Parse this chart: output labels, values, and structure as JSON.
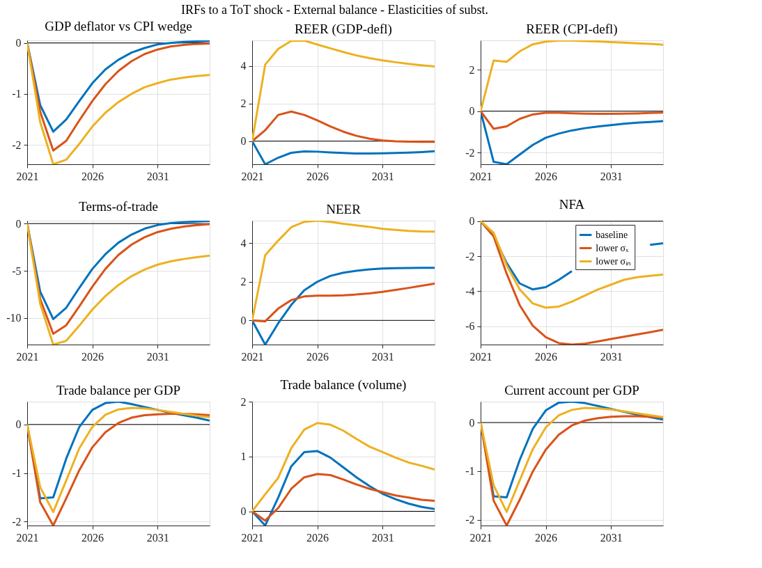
{
  "chart_data": [
    {
      "type": "line",
      "title": "GDP deflator vs CPI wedge",
      "annotations": [
        "IRFs to a ToT shock - External balance - Elasticities of subst."
      ],
      "x": [
        2021,
        2022,
        2023,
        2024,
        2025,
        2026,
        2027,
        2028,
        2029,
        2030,
        2031,
        2032,
        2033,
        2034,
        2035
      ],
      "xlim": [
        2021,
        2035
      ],
      "xticks": [
        2021,
        2026,
        2031
      ],
      "ylim": [
        -2.38,
        0.05
      ],
      "yticks": [
        -2,
        -1,
        0
      ],
      "grid": true,
      "ref_lines": [
        {
          "axis": "y",
          "value": 0,
          "color": "#000000"
        }
      ],
      "series": [
        {
          "color": "#0072bd",
          "values": [
            0,
            -1.22,
            -1.74,
            -1.5,
            -1.14,
            -0.79,
            -0.52,
            -0.33,
            -0.19,
            -0.1,
            -0.03,
            0,
            0.02,
            0.03,
            0.04
          ]
        },
        {
          "color": "#d95319",
          "values": [
            0,
            -1.35,
            -2.11,
            -1.92,
            -1.52,
            -1.14,
            -0.81,
            -0.55,
            -0.36,
            -0.22,
            -0.13,
            -0.07,
            -0.04,
            -0.02,
            -0.01
          ]
        },
        {
          "color": "#edb120",
          "values": [
            0,
            -1.55,
            -2.38,
            -2.29,
            -1.98,
            -1.64,
            -1.37,
            -1.16,
            -1.0,
            -0.87,
            -0.79,
            -0.72,
            -0.68,
            -0.65,
            -0.63
          ]
        }
      ]
    },
    {
      "type": "line",
      "title": "REER (GDP-defl)",
      "x": [
        2021,
        2022,
        2023,
        2024,
        2025,
        2026,
        2027,
        2028,
        2029,
        2030,
        2031,
        2032,
        2033,
        2034,
        2035
      ],
      "xlim": [
        2021,
        2035
      ],
      "xticks": [
        2021,
        2026,
        2031
      ],
      "ylim": [
        -1.23,
        5.35
      ],
      "yticks": [
        0,
        2,
        4
      ],
      "grid": true,
      "ref_lines": [
        {
          "axis": "y",
          "value": 0,
          "color": "#000000"
        }
      ],
      "series": [
        {
          "color": "#0072bd",
          "values": [
            0,
            -1.23,
            -0.88,
            -0.62,
            -0.55,
            -0.56,
            -0.6,
            -0.63,
            -0.66,
            -0.66,
            -0.65,
            -0.63,
            -0.61,
            -0.58,
            -0.54
          ]
        },
        {
          "color": "#d95319",
          "values": [
            0,
            0.58,
            1.39,
            1.57,
            1.39,
            1.1,
            0.78,
            0.5,
            0.28,
            0.13,
            0.04,
            -0.01,
            -0.03,
            -0.04,
            -0.04
          ]
        },
        {
          "color": "#edb120",
          "values": [
            0,
            4.06,
            4.9,
            5.32,
            5.34,
            5.13,
            4.93,
            4.73,
            4.55,
            4.41,
            4.29,
            4.19,
            4.1,
            4.03,
            3.96
          ]
        }
      ]
    },
    {
      "type": "line",
      "title": "REER (CPI-defl)",
      "x": [
        2021,
        2022,
        2023,
        2024,
        2025,
        2026,
        2027,
        2028,
        2029,
        2030,
        2031,
        2032,
        2033,
        2034,
        2035
      ],
      "xlim": [
        2021,
        2035
      ],
      "xticks": [
        2021,
        2026,
        2031
      ],
      "ylim": [
        -2.56,
        3.41
      ],
      "yticks": [
        -2,
        0,
        2
      ],
      "grid": true,
      "ref_lines": [
        {
          "axis": "y",
          "value": 0,
          "color": "#000000"
        }
      ],
      "series": [
        {
          "color": "#0072bd",
          "values": [
            0,
            -2.44,
            -2.56,
            -2.09,
            -1.63,
            -1.28,
            -1.08,
            -0.93,
            -0.82,
            -0.74,
            -0.67,
            -0.61,
            -0.56,
            -0.52,
            -0.48
          ]
        },
        {
          "color": "#d95319",
          "values": [
            0,
            -0.85,
            -0.73,
            -0.37,
            -0.16,
            -0.08,
            -0.08,
            -0.1,
            -0.12,
            -0.13,
            -0.13,
            -0.12,
            -0.11,
            -0.09,
            -0.07
          ]
        },
        {
          "color": "#edb120",
          "values": [
            0,
            2.44,
            2.38,
            2.88,
            3.22,
            3.35,
            3.4,
            3.4,
            3.38,
            3.36,
            3.33,
            3.3,
            3.27,
            3.24,
            3.2
          ]
        }
      ]
    },
    {
      "type": "line",
      "title": "Terms-of-trade",
      "x": [
        2021,
        2022,
        2023,
        2024,
        2025,
        2026,
        2027,
        2028,
        2029,
        2030,
        2031,
        2032,
        2033,
        2034,
        2035
      ],
      "xlim": [
        2021,
        2035
      ],
      "xticks": [
        2021,
        2026,
        2031
      ],
      "ylim": [
        -12.8,
        0.31
      ],
      "yticks": [
        -10,
        -5,
        0
      ],
      "grid": true,
      "ref_lines": [
        {
          "axis": "y",
          "value": 0,
          "color": "#000000"
        }
      ],
      "series": [
        {
          "color": "#0072bd",
          "values": [
            0,
            -7.2,
            -10.1,
            -8.9,
            -6.8,
            -4.8,
            -3.24,
            -2.02,
            -1.17,
            -0.54,
            -0.16,
            0.05,
            0.15,
            0.22,
            0.28
          ]
        },
        {
          "color": "#d95319",
          "values": [
            0,
            -8.0,
            -11.66,
            -10.75,
            -8.76,
            -6.68,
            -4.8,
            -3.32,
            -2.23,
            -1.45,
            -0.9,
            -0.55,
            -0.32,
            -0.17,
            -0.05
          ]
        },
        {
          "color": "#edb120",
          "values": [
            0,
            -8.5,
            -12.8,
            -12.4,
            -10.8,
            -9.1,
            -7.67,
            -6.5,
            -5.57,
            -4.87,
            -4.35,
            -4.0,
            -3.75,
            -3.55,
            -3.39
          ]
        }
      ]
    },
    {
      "type": "line",
      "title": "NEER",
      "x": [
        2021,
        2022,
        2023,
        2024,
        2025,
        2026,
        2027,
        2028,
        2029,
        2030,
        2031,
        2032,
        2033,
        2034,
        2035
      ],
      "xlim": [
        2021,
        2035
      ],
      "xticks": [
        2021,
        2026,
        2031
      ],
      "ylim": [
        -1.25,
        5.16
      ],
      "yticks": [
        0,
        2,
        4
      ],
      "grid": true,
      "ref_lines": [
        {
          "axis": "y",
          "value": 0,
          "color": "#000000"
        }
      ],
      "series": [
        {
          "color": "#0072bd",
          "values": [
            0,
            -1.25,
            -0.15,
            0.8,
            1.56,
            2.0,
            2.3,
            2.47,
            2.57,
            2.64,
            2.68,
            2.7,
            2.71,
            2.72,
            2.72
          ]
        },
        {
          "color": "#d95319",
          "values": [
            0,
            -0.05,
            0.61,
            1.05,
            1.24,
            1.28,
            1.28,
            1.3,
            1.34,
            1.4,
            1.48,
            1.58,
            1.68,
            1.79,
            1.9
          ]
        },
        {
          "color": "#edb120",
          "values": [
            0,
            3.37,
            4.13,
            4.82,
            5.1,
            5.16,
            5.1,
            5.0,
            4.92,
            4.84,
            4.74,
            4.68,
            4.63,
            4.6,
            4.59
          ]
        }
      ]
    },
    {
      "type": "line",
      "title": "NFA",
      "x": [
        2021,
        2022,
        2023,
        2024,
        2025,
        2026,
        2027,
        2028,
        2029,
        2030,
        2031,
        2032,
        2033,
        2034,
        2035
      ],
      "xlim": [
        2021,
        2035
      ],
      "xticks": [
        2021,
        2026,
        2031
      ],
      "ylim": [
        -7.05,
        0.03
      ],
      "yticks": [
        -6,
        -4,
        -2,
        0
      ],
      "grid": true,
      "legend": "top right",
      "ref_lines": [
        {
          "axis": "y",
          "value": 0,
          "color": "#000000"
        }
      ],
      "series": [
        {
          "name": "baseline",
          "color": "#0072bd",
          "values": [
            0,
            -0.85,
            -2.39,
            -3.56,
            -3.9,
            -3.77,
            -3.35,
            -2.85,
            null,
            null,
            null,
            null,
            null,
            -1.35,
            -1.26
          ]
        },
        {
          "name": "lower σₓ",
          "color": "#d95319",
          "values": [
            0,
            -0.87,
            -3.0,
            -4.8,
            -5.97,
            -6.63,
            -6.97,
            -7.05,
            -7.0,
            -6.87,
            -6.73,
            -6.6,
            -6.47,
            -6.34,
            -6.2
          ]
        },
        {
          "name": "lower σᵢₙ",
          "color": "#edb120",
          "values": [
            0,
            -0.66,
            -2.52,
            -3.9,
            -4.7,
            -4.94,
            -4.88,
            -4.6,
            -4.25,
            -3.9,
            -3.63,
            -3.35,
            -3.2,
            -3.12,
            -3.05
          ]
        }
      ]
    },
    {
      "type": "line",
      "title": "Trade balance per GDP",
      "x": [
        2021,
        2022,
        2023,
        2024,
        2025,
        2026,
        2027,
        2028,
        2029,
        2030,
        2031,
        2032,
        2033,
        2034,
        2035
      ],
      "xlim": [
        2021,
        2035
      ],
      "xticks": [
        2021,
        2026,
        2031
      ],
      "ylim": [
        -2.08,
        0.47
      ],
      "yticks": [
        -2,
        -1,
        0
      ],
      "grid": true,
      "ref_lines": [
        {
          "axis": "y",
          "value": 0,
          "color": "#000000"
        }
      ],
      "series": [
        {
          "color": "#0072bd",
          "values": [
            0,
            -1.52,
            -1.5,
            -0.7,
            -0.05,
            0.3,
            0.44,
            0.47,
            0.42,
            0.36,
            0.3,
            0.24,
            0.19,
            0.14,
            0.08
          ]
        },
        {
          "color": "#d95319",
          "values": [
            0,
            -1.6,
            -2.08,
            -1.52,
            -0.94,
            -0.47,
            -0.16,
            0.03,
            0.14,
            0.19,
            0.21,
            0.22,
            0.22,
            0.21,
            0.19
          ]
        },
        {
          "color": "#edb120",
          "values": [
            0,
            -1.29,
            -1.8,
            -1.15,
            -0.49,
            -0.05,
            0.2,
            0.31,
            0.34,
            0.33,
            0.3,
            0.26,
            0.22,
            0.18,
            0.15
          ]
        }
      ]
    },
    {
      "type": "line",
      "title": "Trade balance (volume)",
      "x": [
        2021,
        2022,
        2023,
        2024,
        2025,
        2026,
        2027,
        2028,
        2029,
        2030,
        2031,
        2032,
        2033,
        2034,
        2035
      ],
      "xlim": [
        2021,
        2035
      ],
      "xticks": [
        2021,
        2026,
        2031
      ],
      "ylim": [
        -0.26,
        2.0
      ],
      "yticks": [
        0,
        1,
        2
      ],
      "grid": true,
      "ref_lines": [
        {
          "axis": "y",
          "value": 0,
          "color": "#000000"
        }
      ],
      "series": [
        {
          "color": "#0072bd",
          "values": [
            0,
            -0.26,
            0.25,
            0.82,
            1.08,
            1.1,
            0.98,
            0.8,
            0.62,
            0.46,
            0.32,
            0.22,
            0.14,
            0.08,
            0.04
          ]
        },
        {
          "color": "#d95319",
          "values": [
            0,
            -0.17,
            0.06,
            0.41,
            0.62,
            0.68,
            0.66,
            0.58,
            0.49,
            0.41,
            0.35,
            0.29,
            0.25,
            0.21,
            0.19
          ]
        },
        {
          "color": "#edb120",
          "values": [
            0,
            0.31,
            0.61,
            1.15,
            1.49,
            1.61,
            1.58,
            1.47,
            1.32,
            1.18,
            1.08,
            0.98,
            0.89,
            0.83,
            0.76
          ]
        }
      ]
    },
    {
      "type": "line",
      "title": "Current account per GDP",
      "x": [
        2021,
        2022,
        2023,
        2024,
        2025,
        2026,
        2027,
        2028,
        2029,
        2030,
        2031,
        2032,
        2033,
        2034,
        2035
      ],
      "xlim": [
        2021,
        2035
      ],
      "xticks": [
        2021,
        2026,
        2031
      ],
      "ylim": [
        -2.12,
        0.43
      ],
      "yticks": [
        -2,
        -1,
        0
      ],
      "grid": true,
      "ref_lines": [
        {
          "axis": "y",
          "value": 0,
          "color": "#000000"
        }
      ],
      "series": [
        {
          "color": "#0072bd",
          "values": [
            0,
            -1.52,
            -1.54,
            -0.77,
            -0.13,
            0.25,
            0.41,
            0.43,
            0.4,
            0.34,
            0.28,
            0.22,
            0.16,
            0.11,
            0.06
          ]
        },
        {
          "color": "#d95319",
          "values": [
            0,
            -1.61,
            -2.12,
            -1.59,
            -1.01,
            -0.56,
            -0.25,
            -0.06,
            0.04,
            0.09,
            0.12,
            0.13,
            0.13,
            0.12,
            0.1
          ]
        },
        {
          "color": "#edb120",
          "values": [
            0,
            -1.29,
            -1.84,
            -1.19,
            -0.55,
            -0.1,
            0.15,
            0.26,
            0.3,
            0.29,
            0.27,
            0.23,
            0.19,
            0.15,
            0.11
          ]
        }
      ]
    }
  ]
}
